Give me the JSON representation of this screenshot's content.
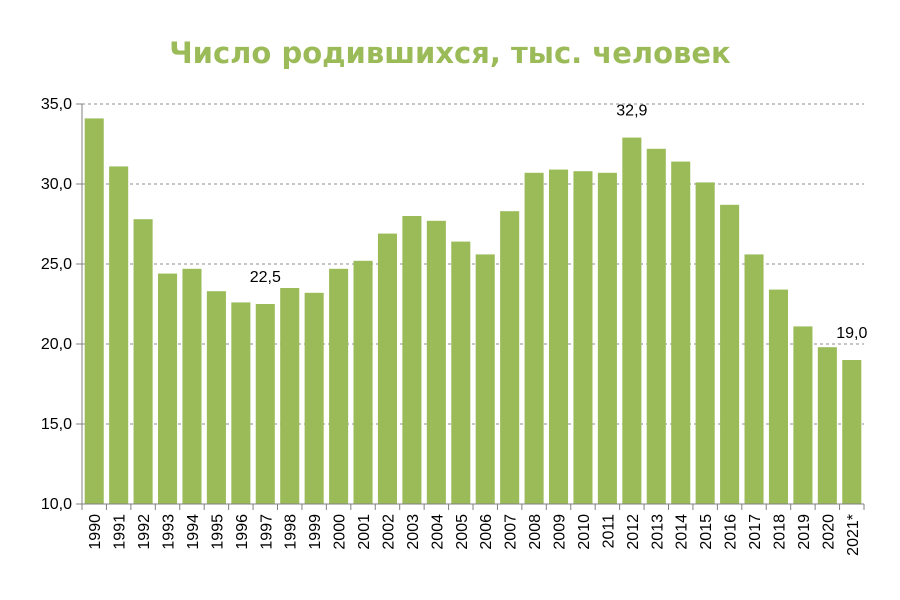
{
  "chart_data": {
    "type": "bar",
    "title": "Число родившихся, тыс. человек",
    "xlabel": "",
    "ylabel": "",
    "ylim": [
      10,
      35
    ],
    "yticks": [
      "10,0",
      "15,0",
      "20,0",
      "25,0",
      "30,0",
      "35,0"
    ],
    "grid": true,
    "bar_color": "#9bbb59",
    "categories": [
      "1990",
      "1991",
      "1992",
      "1993",
      "1994",
      "1995",
      "1996",
      "1997",
      "1998",
      "1999",
      "2000",
      "2001",
      "2002",
      "2003",
      "2004",
      "2005",
      "2006",
      "2007",
      "2008",
      "2009",
      "2010",
      "2011",
      "2012",
      "2013",
      "2014",
      "2015",
      "2016",
      "2017",
      "2018",
      "2019",
      "2020",
      "2021*"
    ],
    "values": [
      34.1,
      31.1,
      27.8,
      24.4,
      24.7,
      23.3,
      22.6,
      22.5,
      23.5,
      23.2,
      24.7,
      25.2,
      26.9,
      28.0,
      27.7,
      26.4,
      25.6,
      28.3,
      30.7,
      30.9,
      30.8,
      30.7,
      32.9,
      32.2,
      31.4,
      30.1,
      28.7,
      25.6,
      23.4,
      21.1,
      19.8,
      19.0
    ],
    "data_labels": [
      {
        "category": "1997",
        "text": "22,5"
      },
      {
        "category": "2012",
        "text": "32,9"
      },
      {
        "category": "2021*",
        "text": "19,0"
      }
    ]
  }
}
